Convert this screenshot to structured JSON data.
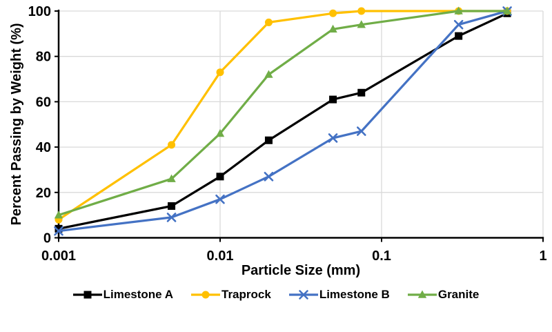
{
  "chart_data": {
    "type": "line",
    "title": "",
    "x_axis": {
      "label": "Particle Size (mm)",
      "scale": "log",
      "range": [
        0.001,
        1
      ],
      "tick_values": [
        0.001,
        0.01,
        0.1,
        1
      ],
      "tick_labels": [
        "0.001",
        "0.01",
        "0.1",
        "1"
      ]
    },
    "y_axis": {
      "label": "Percent Passing by Weight (%)",
      "scale": "linear",
      "range": [
        0,
        100
      ],
      "tick_values": [
        0,
        20,
        40,
        60,
        80,
        100
      ],
      "tick_labels": [
        "0",
        "20",
        "40",
        "60",
        "80",
        "100"
      ]
    },
    "grid": true,
    "legend_position": "bottom",
    "x": [
      0.001,
      0.005,
      0.01,
      0.02,
      0.05,
      0.075,
      0.3,
      0.6
    ],
    "series": [
      {
        "name": "Limestone A",
        "color": "#000000",
        "marker": "square",
        "values": [
          4,
          14,
          27,
          43,
          61,
          64,
          89,
          99
        ]
      },
      {
        "name": "Traprock",
        "color": "#FFC000",
        "marker": "circle",
        "values": [
          8,
          41,
          73,
          95,
          99,
          100,
          100,
          100
        ]
      },
      {
        "name": "Limestone B",
        "color": "#4472C4",
        "marker": "x",
        "values": [
          3,
          9,
          17,
          27,
          44,
          47,
          94,
          100
        ]
      },
      {
        "name": "Granite",
        "color": "#70AD47",
        "marker": "triangle",
        "values": [
          10,
          26,
          46,
          72,
          92,
          94,
          100,
          100
        ]
      }
    ],
    "colors": {
      "background": "#FFFFFF",
      "grid": "#D9D9D9",
      "axis": "#000000",
      "text": "#000000"
    }
  }
}
